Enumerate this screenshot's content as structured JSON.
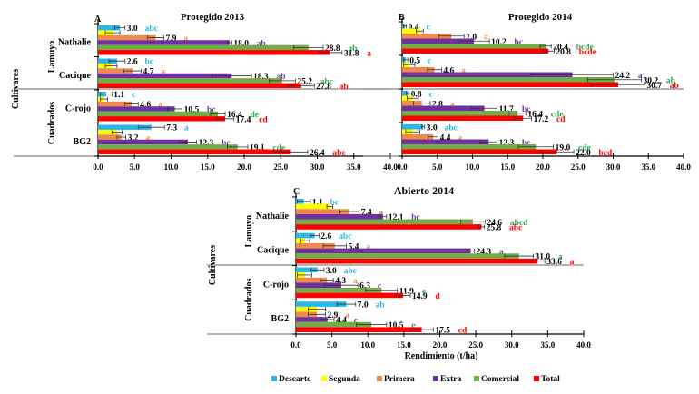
{
  "chart_data": {
    "type": "bar",
    "orientation": "horizontal",
    "shared": {
      "xlabel": "Rendimiento (t/ha)",
      "ylabel": "Cultivares",
      "xlim": [
        0,
        40
      ],
      "xticks": [
        "0.0",
        "5.0",
        "10.0",
        "15.0",
        "20.0",
        "25.0",
        "30.0",
        "35.0",
        "40.0"
      ],
      "groups": [
        {
          "name": "Lamuyo",
          "cultivars": [
            "Nathalie",
            "Cacique"
          ]
        },
        {
          "name": "Cuadrados",
          "cultivars": [
            "C-rojo",
            "BG2"
          ]
        }
      ],
      "series_names": [
        "Descarte",
        "Segunda",
        "Primera",
        "Extra",
        "Comercial",
        "Total"
      ],
      "series_colors": [
        "#29b6e8",
        "#ffff00",
        "#f08a4b",
        "#7030a0",
        "#70ad47",
        "#ff0000"
      ],
      "legend_position": "bottom"
    },
    "panels": [
      {
        "letter": "A",
        "title": "Protegido 2013",
        "cultivars": [
          {
            "name": "Nathalie",
            "values": [
              3.0,
              2.0,
              7.9,
              18.0,
              28.8,
              31.8
            ],
            "errors": [
              0.7,
              1.0,
              1.1,
              0.3,
              2.0,
              1.6
            ],
            "labels": [
              "3.0",
              null,
              "7.9",
              "18.0",
              "28.8",
              "31.8"
            ],
            "letters": [
              "abc",
              null,
              "a",
              "ab",
              "ab",
              "a"
            ]
          },
          {
            "name": "Cacique",
            "values": [
              2.6,
              1.8,
              4.7,
              18.3,
              25.2,
              27.8
            ],
            "errors": [
              1.1,
              0.8,
              1.2,
              2.7,
              1.8,
              1.8
            ],
            "labels": [
              "2.6",
              null,
              "4.7",
              "18.3",
              "25.2",
              "27.8"
            ],
            "letters": [
              "bc",
              null,
              "a",
              "ab",
              "abc",
              "ab"
            ]
          },
          {
            "name": "C-rojo",
            "values": [
              1.1,
              0.8,
              4.6,
              10.5,
              16.4,
              17.4
            ],
            "errors": [
              0.8,
              0.5,
              0.9,
              1.0,
              1.0,
              1.2
            ],
            "labels": [
              "1.1",
              null,
              "4.6",
              "10.5",
              "16.4",
              "17.4"
            ],
            "letters": [
              "c",
              null,
              "a",
              "bc",
              "de",
              "cd"
            ]
          },
          {
            "name": "BG2",
            "values": [
              7.3,
              2.6,
              3.2,
              12.3,
              19.1,
              26.4
            ],
            "errors": [
              1.8,
              0.7,
              0.6,
              1.2,
              1.4,
              2.3
            ],
            "labels": [
              "7.3",
              null,
              "3.2",
              "12.3",
              "19.1",
              "26.4"
            ],
            "letters": [
              "a",
              null,
              "a",
              "bc",
              "cde",
              "abc"
            ]
          }
        ]
      },
      {
        "letter": "B",
        "title": "Protegido  2014",
        "cultivars": [
          {
            "name": "Nathalie",
            "values": [
              0.4,
              2.5,
              7.0,
              10.2,
              20.4,
              20.8
            ],
            "errors": [
              0.2,
              0.5,
              1.8,
              2.2,
              0.8,
              0.8
            ],
            "labels": [
              "0.4",
              null,
              "7.0",
              "10.2",
              "20.4",
              "20.8"
            ],
            "letters": [
              "c",
              null,
              "a",
              "bc",
              "bcde",
              "bcde"
            ]
          },
          {
            "name": "Cacique",
            "values": [
              0.5,
              1.0,
              4.6,
              24.2,
              30.2,
              30.7
            ],
            "errors": [
              0.3,
              0.8,
              1.0,
              5.8,
              3.8,
              3.8
            ],
            "labels": [
              "0.5",
              null,
              "4.6",
              "24.2",
              "30.2",
              "30.7"
            ],
            "letters": [
              "c",
              null,
              "a",
              "a",
              "ab",
              "ab"
            ]
          },
          {
            "name": "C-rojo",
            "values": [
              0.8,
              1.5,
              2.8,
              11.7,
              16.4,
              17.2
            ],
            "errors": [
              0.2,
              0.8,
              1.2,
              1.8,
              1.2,
              1.2
            ],
            "labels": [
              "0.8",
              null,
              "2.8",
              "11.7",
              "16.4",
              "17.2"
            ],
            "letters": [
              "c",
              null,
              "a",
              "bc",
              "cde",
              "cd"
            ]
          },
          {
            "name": "BG2",
            "values": [
              3.0,
              1.5,
              4.4,
              12.3,
              19.0,
              22.0
            ],
            "errors": [
              0.2,
              1.0,
              0.7,
              1.2,
              2.5,
              2.4
            ],
            "labels": [
              "3.0",
              null,
              "4.4",
              "12.3",
              "19.0",
              "22.0"
            ],
            "letters": [
              "abc",
              null,
              "a",
              "bc",
              "cde",
              "bcd"
            ]
          }
        ]
      },
      {
        "letter": "C",
        "title": "Abierto  2014",
        "cultivars": [
          {
            "name": "Nathalie",
            "values": [
              1.1,
              4.7,
              7.4,
              12.1,
              24.6,
              25.8
            ],
            "errors": [
              0.9,
              0.4,
              1.4,
              0.5,
              1.7,
              0.4
            ],
            "labels": [
              "1.1",
              null,
              "7.4",
              "12.1",
              "24.6",
              "25.8"
            ],
            "letters": [
              "bc",
              null,
              "a",
              "bc",
              "abcd",
              "abc"
            ]
          },
          {
            "name": "Cacique",
            "values": [
              2.6,
              1.3,
              5.4,
              24.3,
              31.0,
              33.6
            ],
            "errors": [
              0.6,
              0.6,
              1.6,
              0.5,
              2.0,
              1.0
            ],
            "labels": [
              "2.6",
              null,
              "5.4",
              "24.3",
              "31.0",
              "33.6"
            ],
            "letters": [
              "abc",
              null,
              "a",
              "a",
              "a",
              "a"
            ]
          },
          {
            "name": "C-rojo",
            "values": [
              3.0,
              1.2,
              4.3,
              6.3,
              11.9,
              14.9
            ],
            "errors": [
              0.9,
              1.0,
              0.9,
              2.3,
              2.2,
              1.0
            ],
            "labels": [
              "3.0",
              null,
              "4.3",
              "6.3",
              "11.9",
              "14.9"
            ],
            "letters": [
              "abc",
              null,
              "a",
              "c",
              "e",
              "d"
            ]
          },
          {
            "name": "BG2",
            "values": [
              7.0,
              2.9,
              2.9,
              4.4,
              10.5,
              17.5
            ],
            "errors": [
              1.3,
              1.2,
              1.2,
              0.9,
              2.1,
              1.6
            ],
            "labels": [
              "7.0",
              null,
              "2.9",
              "4.4",
              "10.5",
              "17.5"
            ],
            "letters": [
              "ab",
              null,
              "a",
              "c",
              "e",
              "cd"
            ]
          }
        ]
      }
    ]
  }
}
